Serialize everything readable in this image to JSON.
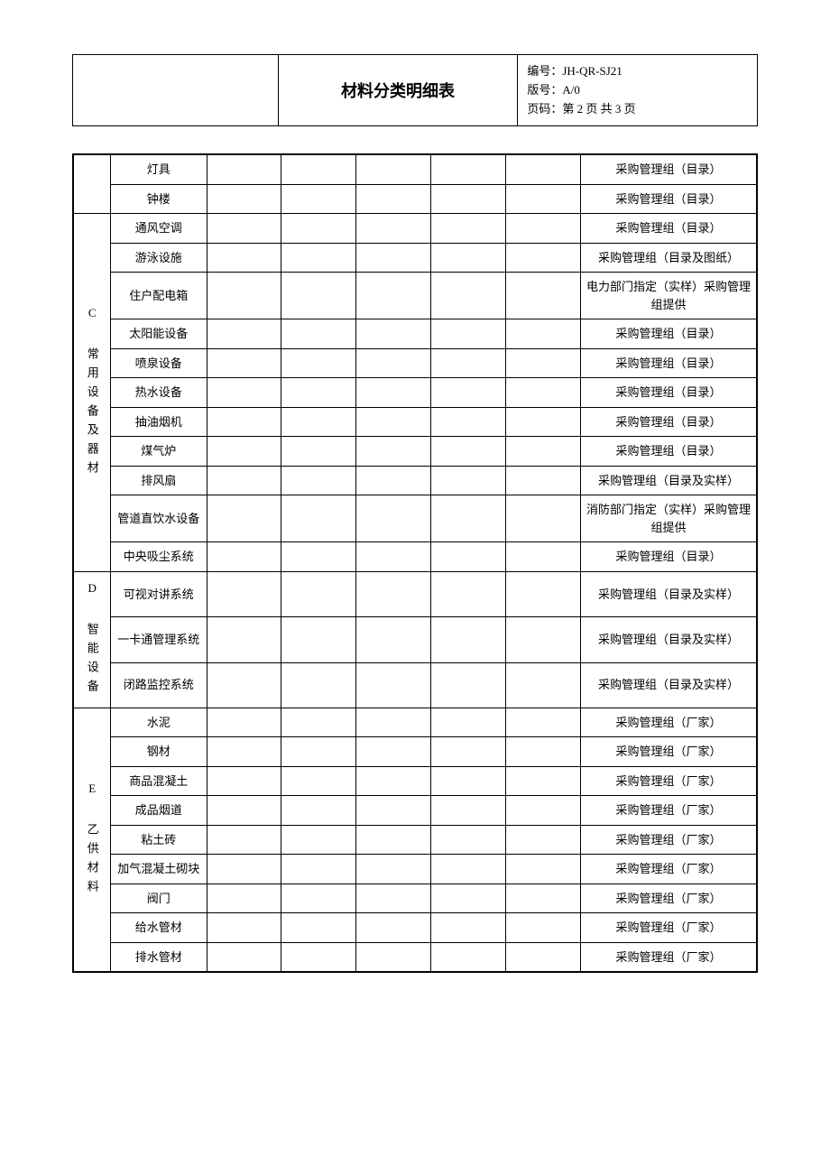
{
  "header": {
    "title": "材料分类明细表",
    "code_label": "编号：",
    "code": "JH-QR-SJ21",
    "version_label": "版号：",
    "version": "A/0",
    "page_label": "页码：",
    "page": "第 2 页 共 3 页"
  },
  "groups": [
    {
      "category": "",
      "rows": [
        {
          "item": "灯具",
          "note": "采购管理组（目录）"
        },
        {
          "item": "钟楼",
          "note": "采购管理组（目录）"
        }
      ]
    },
    {
      "category": "C 常用设备及器材",
      "rows": [
        {
          "item": "通风空调",
          "note": "采购管理组（目录）"
        },
        {
          "item": "游泳设施",
          "note": "采购管理组（目录及图纸）"
        },
        {
          "item": "住户配电箱",
          "note": "电力部门指定（实样）采购管理组提供"
        },
        {
          "item": "太阳能设备",
          "note": "采购管理组（目录）"
        },
        {
          "item": "喷泉设备",
          "note": "采购管理组（目录）"
        },
        {
          "item": "热水设备",
          "note": "采购管理组（目录）"
        },
        {
          "item": "抽油烟机",
          "note": "采购管理组（目录）"
        },
        {
          "item": "煤气炉",
          "note": "采购管理组（目录）"
        },
        {
          "item": "排风扇",
          "note": "采购管理组（目录及实样）"
        },
        {
          "item": "管道直饮水设备",
          "note": "消防部门指定（实样）采购管理组提供"
        },
        {
          "item": "中央吸尘系统",
          "note": "采购管理组（目录）"
        }
      ]
    },
    {
      "category": "D 智能设备",
      "rows": [
        {
          "item": "可视对讲系统",
          "note": "采购管理组（目录及实样）"
        },
        {
          "item": "一卡通管理系统",
          "note": "采购管理组（目录及实样）"
        },
        {
          "item": "闭路监控系统",
          "note": "采购管理组（目录及实样）"
        }
      ]
    },
    {
      "category": "E 乙供材料",
      "rows": [
        {
          "item": "水泥",
          "note": "采购管理组（厂家）"
        },
        {
          "item": "钢材",
          "note": "采购管理组（厂家）"
        },
        {
          "item": "商品混凝土",
          "note": "采购管理组（厂家）"
        },
        {
          "item": "成品烟道",
          "note": "采购管理组（厂家）"
        },
        {
          "item": "粘土砖",
          "note": "采购管理组（厂家）"
        },
        {
          "item": "加气混凝土砌块",
          "note": "采购管理组（厂家）"
        },
        {
          "item": "阀门",
          "note": "采购管理组（厂家）"
        },
        {
          "item": "给水管材",
          "note": "采购管理组（厂家）"
        },
        {
          "item": "排水管材",
          "note": "采购管理组（厂家）"
        }
      ]
    }
  ],
  "table_style": {
    "background_color": "#ffffff",
    "border_color": "#000000",
    "font_family": "SimSun",
    "font_size_body": 13,
    "font_size_title": 18,
    "empty_cols": 5
  }
}
